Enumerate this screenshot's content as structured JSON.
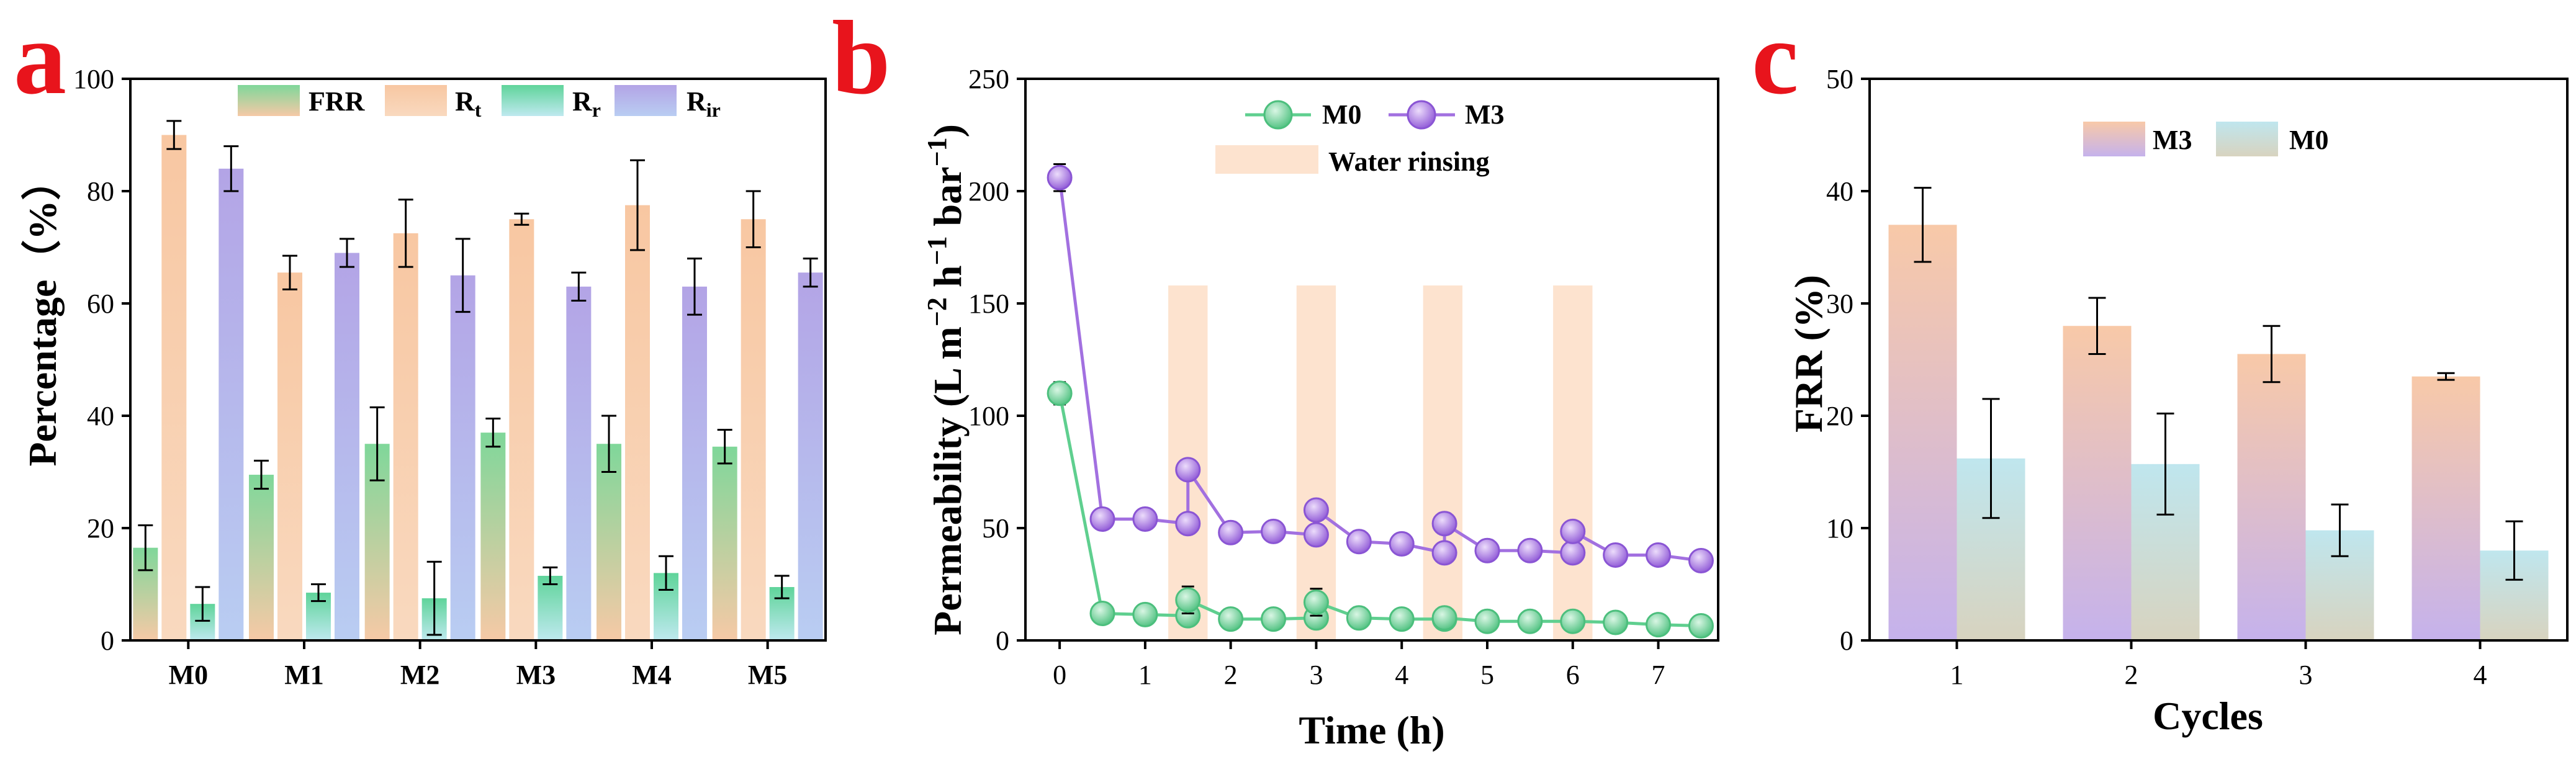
{
  "colors": {
    "frr": "#6fcf8f",
    "rt": "#f7c9a0",
    "rr": "#5fd49a",
    "rir": "#b6a6e8",
    "m0_line": "#5fcf8f",
    "m3_line": "#a270e0",
    "rinse": "#fde3cf",
    "m3_bar_top": "#f8c9a8",
    "m3_bar_bottom": "#c5b2ec",
    "m0_bar_top": "#bfe6ee",
    "m0_bar_bottom": "#d8d3bf",
    "letter": "#e8141c"
  },
  "chart_data": [
    {
      "panel": "a",
      "type": "bar",
      "title": "",
      "xlabel": "",
      "ylabel": "Percentage（%）",
      "ylim": [
        0,
        100
      ],
      "yticks": [
        "0",
        "20",
        "40",
        "60",
        "80",
        "100"
      ],
      "categories": [
        "M0",
        "M1",
        "M2",
        "M3",
        "M4",
        "M5"
      ],
      "legend": [
        "FRR",
        "Rt",
        "Rr",
        "Rir"
      ],
      "series": [
        {
          "name": "FRR",
          "values": [
            16.5,
            29.5,
            35,
            37,
            35,
            34.5
          ],
          "errors": [
            4,
            2.5,
            6.5,
            2.5,
            5,
            3
          ]
        },
        {
          "name": "Rt",
          "values": [
            90,
            65.5,
            72.5,
            75,
            77.5,
            75
          ],
          "errors": [
            2.5,
            3,
            6,
            1,
            8,
            5
          ]
        },
        {
          "name": "Rr",
          "values": [
            6.5,
            8.5,
            7.5,
            11.5,
            12,
            9.5
          ],
          "errors": [
            3,
            1.5,
            6.5,
            1.5,
            3,
            2
          ]
        },
        {
          "name": "Rir",
          "values": [
            84,
            69,
            65,
            63,
            63,
            65.5
          ],
          "errors": [
            4,
            2.5,
            6.5,
            2.5,
            5,
            2.5
          ]
        }
      ]
    },
    {
      "panel": "b",
      "type": "line",
      "title": "",
      "xlabel": "Time (h)",
      "ylabel": "Permeability (L m⁻² h⁻¹ bar⁻¹)",
      "xlim": [
        -0.4,
        7.7
      ],
      "ylim": [
        0,
        250
      ],
      "xticks": [
        "0",
        "1",
        "2",
        "3",
        "4",
        "5",
        "6",
        "7"
      ],
      "yticks": [
        "0",
        "50",
        "100",
        "150",
        "200",
        "250"
      ],
      "legend": [
        "M0",
        "M3",
        "Water rinsing"
      ],
      "rinse_intervals": [
        [
          1.27,
          1.73
        ],
        [
          2.77,
          3.23
        ],
        [
          4.25,
          4.71
        ],
        [
          5.77,
          6.23
        ]
      ],
      "rinse_top": 158,
      "series": [
        {
          "name": "M0",
          "x": [
            0,
            0.5,
            1,
            1.5,
            1.5,
            2,
            2.5,
            3,
            3,
            3.5,
            4,
            4.5,
            4.5,
            5,
            5.5,
            6,
            6.5,
            7,
            7.5
          ],
          "y": [
            110,
            12,
            11.5,
            11,
            18,
            9.5,
            9.5,
            10,
            17,
            10,
            9.5,
            9.5,
            10,
            8.5,
            8.5,
            8.5,
            8,
            7,
            6.5
          ],
          "errors": [
            5,
            3,
            2,
            2,
            6,
            3,
            2,
            2,
            6,
            2,
            2,
            2,
            2,
            2,
            2,
            2,
            2,
            2,
            2
          ]
        },
        {
          "name": "M3",
          "x": [
            0,
            0.5,
            1,
            1.5,
            1.5,
            2,
            2.5,
            3,
            3,
            3.5,
            4,
            4.5,
            4.5,
            5,
            5.5,
            6,
            6,
            6.5,
            7,
            7.5
          ],
          "y": [
            206,
            54,
            54,
            52,
            76,
            48,
            48.5,
            47,
            58,
            44,
            43,
            39,
            52,
            40,
            40,
            39,
            48.5,
            38,
            38,
            35.5
          ],
          "errors": [
            6,
            0,
            0,
            0,
            0,
            0,
            0,
            0,
            0,
            0,
            0,
            0,
            0,
            0,
            0,
            0,
            0,
            0,
            0,
            0
          ]
        }
      ]
    },
    {
      "panel": "c",
      "type": "bar",
      "title": "",
      "xlabel": "Cycles",
      "ylabel": "FRR (%)",
      "ylim": [
        0,
        50
      ],
      "yticks": [
        "0",
        "10",
        "20",
        "30",
        "40",
        "50"
      ],
      "categories": [
        "1",
        "2",
        "3",
        "4"
      ],
      "legend": [
        "M3",
        "M0"
      ],
      "series": [
        {
          "name": "M3",
          "values": [
            37,
            28,
            25.5,
            23.5
          ],
          "errors": [
            3.3,
            2.5,
            2.5,
            0.3
          ]
        },
        {
          "name": "M0",
          "values": [
            16.2,
            15.7,
            9.8,
            8
          ],
          "errors": [
            5.3,
            4.5,
            2.3,
            2.6
          ]
        }
      ]
    }
  ],
  "panels": {
    "a": "a",
    "b": "b",
    "c": "c"
  }
}
